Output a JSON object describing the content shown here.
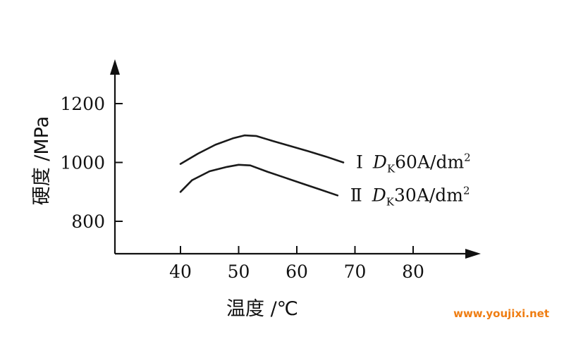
{
  "chart_data": {
    "type": "line",
    "xlabel": "温度 /℃",
    "ylabel": "硬度 /MPa",
    "x_ticks": [
      40,
      50,
      60,
      70,
      80
    ],
    "y_ticks": [
      800,
      1000,
      1200
    ],
    "grid": false,
    "series": [
      {
        "marker": "Ⅰ",
        "name_prefix": "D",
        "name_subscript": "K",
        "name_body": "60A/dm",
        "name_superscript": "2",
        "x": [
          40,
          43,
          46,
          49,
          51,
          53,
          56,
          59,
          62,
          65,
          68
        ],
        "y": [
          995,
          1030,
          1060,
          1082,
          1092,
          1090,
          1072,
          1055,
          1038,
          1020,
          1000
        ]
      },
      {
        "marker": "Ⅱ",
        "name_prefix": "D",
        "name_subscript": "K",
        "name_body": "30A/dm",
        "name_superscript": "2",
        "x": [
          40,
          42,
          45,
          48,
          50,
          52,
          55,
          58,
          61,
          64,
          67
        ],
        "y": [
          900,
          940,
          970,
          985,
          992,
          990,
          968,
          948,
          928,
          908,
          888
        ]
      }
    ]
  },
  "watermark": "www.youjixi.net",
  "colors": {
    "axis": "#111111",
    "line": "#1a1a1a",
    "watermark": "#ef7d12"
  }
}
